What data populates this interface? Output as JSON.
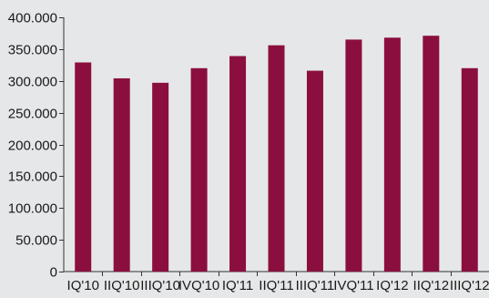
{
  "chart_data": {
    "type": "bar",
    "categories": [
      "I Q'10",
      "II Q'10",
      "III Q'10",
      "IV Q'10",
      "I Q'11",
      "II Q'11",
      "III Q'11",
      "IV Q'11",
      "I Q'12",
      "II Q'12",
      "III Q'12"
    ],
    "category_labels": [
      "IQ'10",
      "IIQ'10",
      "IIIQ'10",
      "IVQ'10",
      "IQ'11",
      "IIQ'11",
      "IIIQ'11",
      "IVQ'11",
      "IQ'12",
      "IIQ'12",
      "IIIQ'12"
    ],
    "values": [
      329000,
      304000,
      297000,
      320000,
      339000,
      356000,
      316000,
      365000,
      368000,
      371000,
      320000
    ],
    "ylim": [
      0,
      400000
    ],
    "y_ticks": [
      0,
      50000,
      100000,
      150000,
      200000,
      250000,
      300000,
      350000,
      400000
    ],
    "y_tick_labels": [
      "0",
      "50.000",
      "100.000",
      "150.000",
      "200.000",
      "250.000",
      "300.000",
      "350.000",
      "400.000"
    ],
    "bar_color": "#8b0f3e",
    "background_color": "#e6e7e8",
    "grid": false,
    "legend": "none",
    "title": "",
    "xlabel": "",
    "ylabel": ""
  }
}
